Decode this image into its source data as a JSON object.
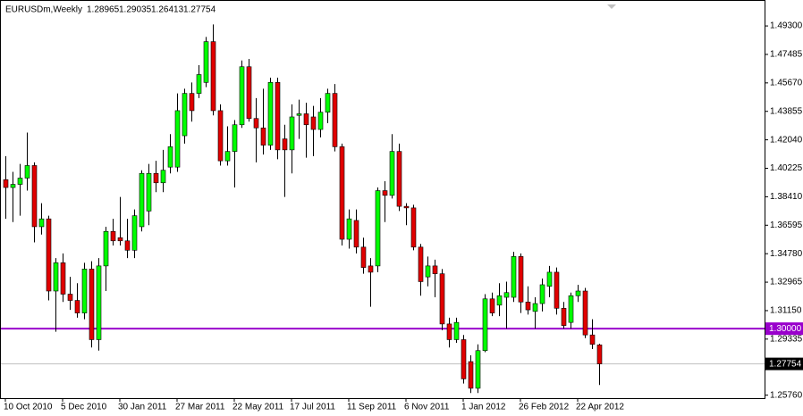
{
  "chart_data": {
    "type": "candlestick",
    "title": "EURUSDm,Weekly",
    "categories": [
      "10 Oct 2010",
      null,
      null,
      null,
      null,
      null,
      null,
      null,
      "5 Dec 2010",
      null,
      null,
      null,
      null,
      null,
      null,
      null,
      "30 Jan 2011",
      null,
      null,
      null,
      null,
      null,
      null,
      null,
      "27 Mar 2011",
      null,
      null,
      null,
      null,
      null,
      null,
      null,
      "22 May 2011",
      null,
      null,
      null,
      null,
      null,
      null,
      null,
      "17 Jul 2011",
      null,
      null,
      null,
      null,
      null,
      null,
      null,
      "11 Sep 2011",
      null,
      null,
      null,
      null,
      null,
      null,
      null,
      "6 Nov 2011",
      null,
      null,
      null,
      null,
      null,
      null,
      null,
      "1 Jan 2012",
      null,
      null,
      null,
      null,
      null,
      null,
      null,
      "26 Feb 2012",
      null,
      null,
      null,
      null,
      null,
      null,
      null,
      "22 Apr 2012",
      null,
      null,
      null
    ],
    "open": [
      1.395,
      1.39,
      1.392,
      1.396,
      1.404,
      1.365,
      1.37,
      1.324,
      1.342,
      1.322,
      1.318,
      1.31,
      1.338,
      1.293,
      1.34,
      1.362,
      1.358,
      1.356,
      1.35,
      1.365,
      1.375,
      1.399,
      1.393,
      1.403,
      1.403,
      1.423,
      1.45,
      1.45,
      1.457,
      1.483,
      1.439,
      1.407,
      1.413,
      1.43,
      1.467,
      1.434,
      1.428,
      1.417,
      1.457,
      1.421,
      1.414,
      1.436,
      1.437,
      1.435,
      1.427,
      1.438,
      1.45,
      1.416,
      1.357,
      1.369,
      1.352,
      1.34,
      1.34,
      1.388,
      1.385,
      1.413,
      1.378,
      1.377,
      1.352,
      1.333,
      1.34,
      1.335,
      1.303,
      1.293,
      1.293,
      1.279,
      1.262,
      1.286,
      1.319,
      1.315,
      1.32,
      1.32,
      1.346,
      1.317,
      1.311,
      1.316,
      1.327,
      1.336,
      1.313,
      1.304,
      1.321,
      1.324,
      1.296,
      1.28965
    ],
    "high": [
      1.41,
      1.4,
      1.405,
      1.425,
      1.406,
      1.38,
      1.372,
      1.345,
      1.348,
      1.333,
      1.329,
      1.342,
      1.343,
      1.345,
      1.365,
      1.37,
      1.384,
      1.37,
      1.376,
      1.401,
      1.405,
      1.407,
      1.414,
      1.424,
      1.45,
      1.453,
      1.457,
      1.468,
      1.486,
      1.494,
      1.443,
      1.429,
      1.433,
      1.471,
      1.472,
      1.447,
      1.453,
      1.46,
      1.46,
      1.43,
      1.443,
      1.446,
      1.444,
      1.442,
      1.447,
      1.453,
      1.456,
      1.418,
      1.376,
      1.376,
      1.358,
      1.345,
      1.39,
      1.394,
      1.424,
      1.418,
      1.38,
      1.379,
      1.354,
      1.346,
      1.344,
      1.338,
      1.307,
      1.307,
      1.296,
      1.283,
      1.29,
      1.322,
      1.323,
      1.329,
      1.33,
      1.349,
      1.348,
      1.327,
      1.32,
      1.332,
      1.34,
      1.339,
      1.317,
      1.323,
      1.328,
      1.326,
      1.306,
      1.29035
    ],
    "low": [
      1.37,
      1.368,
      1.372,
      1.388,
      1.355,
      1.36,
      1.318,
      1.298,
      1.317,
      1.312,
      1.307,
      1.306,
      1.288,
      1.286,
      1.324,
      1.353,
      1.353,
      1.345,
      1.345,
      1.362,
      1.366,
      1.387,
      1.387,
      1.399,
      1.4,
      1.418,
      1.432,
      1.447,
      1.454,
      1.436,
      1.404,
      1.404,
      1.39,
      1.428,
      1.432,
      1.406,
      1.411,
      1.414,
      1.408,
      1.384,
      1.399,
      1.421,
      1.409,
      1.41,
      1.422,
      1.431,
      1.413,
      1.353,
      1.351,
      1.348,
      1.335,
      1.314,
      1.336,
      1.368,
      1.383,
      1.375,
      1.366,
      1.35,
      1.321,
      1.327,
      1.32,
      1.299,
      1.288,
      1.291,
      1.265,
      1.259,
      1.259,
      1.285,
      1.308,
      1.308,
      1.3,
      1.317,
      1.31,
      1.309,
      1.3,
      1.311,
      1.32,
      1.309,
      1.3,
      1.3,
      1.317,
      1.294,
      1.287,
      1.26413
    ],
    "close": [
      1.39,
      1.392,
      1.396,
      1.404,
      1.365,
      1.37,
      1.324,
      1.342,
      1.322,
      1.318,
      1.31,
      1.338,
      1.293,
      1.34,
      1.362,
      1.356,
      1.356,
      1.35,
      1.372,
      1.399,
      1.399,
      1.393,
      1.401,
      1.416,
      1.439,
      1.45,
      1.439,
      1.462,
      1.483,
      1.439,
      1.407,
      1.413,
      1.43,
      1.467,
      1.434,
      1.428,
      1.417,
      1.457,
      1.414,
      1.414,
      1.435,
      1.437,
      1.43,
      1.427,
      1.438,
      1.45,
      1.416,
      1.357,
      1.37,
      1.352,
      1.339,
      1.336,
      1.388,
      1.385,
      1.413,
      1.378,
      1.377,
      1.352,
      1.33,
      1.34,
      1.335,
      1.303,
      1.293,
      1.304,
      1.268,
      1.262,
      1.286,
      1.319,
      1.31,
      1.321,
      1.323,
      1.346,
      1.317,
      1.312,
      1.316,
      1.328,
      1.336,
      1.313,
      1.302,
      1.321,
      1.324,
      1.296,
      1.29,
      1.27754
    ],
    "up_color": "#00ff00",
    "down_color": "#e00000",
    "ylim": [
      1.2557,
      1.5067
    ],
    "yticks": [
      {
        "value": 1.493,
        "label": "1.49300"
      },
      {
        "value": 1.47485,
        "label": "1.47485"
      },
      {
        "value": 1.4567,
        "label": "1.45670"
      },
      {
        "value": 1.43855,
        "label": "1.43855"
      },
      {
        "value": 1.4204,
        "label": "1.42040"
      },
      {
        "value": 1.40225,
        "label": "1.40225"
      },
      {
        "value": 1.3841,
        "label": "1.38410"
      },
      {
        "value": 1.36595,
        "label": "1.36595"
      },
      {
        "value": 1.3478,
        "label": "1.34780"
      },
      {
        "value": 1.32965,
        "label": "1.32965"
      },
      {
        "value": 1.3115,
        "label": "1.31150"
      },
      {
        "value": 1.29335,
        "label": "1.29335"
      },
      {
        "value": 1.2576,
        "label": "1.25760"
      }
    ],
    "hline": {
      "value": 1.3,
      "label": "1.30000",
      "color": "#9900cc"
    }
  }
}
